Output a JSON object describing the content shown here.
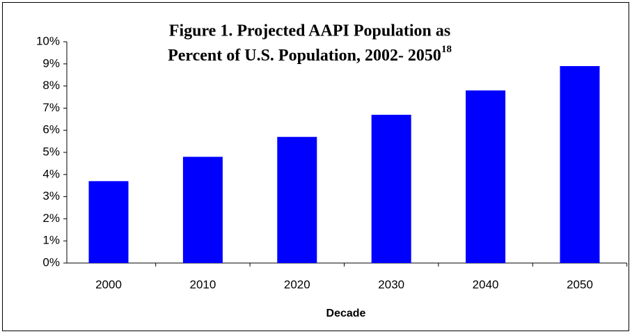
{
  "chart_data": {
    "type": "bar",
    "title": [
      "Figure 1. Projected AAPI Population as",
      "Percent of U.S. Population, 2002- 2050"
    ],
    "title_superscript": "18",
    "x_label": "Decade",
    "categories": [
      "2000",
      "2010",
      "2020",
      "2030",
      "2040",
      "2050"
    ],
    "values": [
      3.7,
      4.8,
      5.7,
      6.7,
      7.8,
      8.9
    ],
    "color": "#0000ff",
    "ylim": [
      0,
      10
    ],
    "yticks": [
      {
        "value": 0,
        "label": "0%"
      },
      {
        "value": 1,
        "label": "1%"
      },
      {
        "value": 2,
        "label": "2%"
      },
      {
        "value": 3,
        "label": "3%"
      },
      {
        "value": 4,
        "label": "4%"
      },
      {
        "value": 5,
        "label": "5%"
      },
      {
        "value": 6,
        "label": "6%"
      },
      {
        "value": 7,
        "label": "7%"
      },
      {
        "value": 8,
        "label": "8%"
      },
      {
        "value": 9,
        "label": "9%"
      },
      {
        "value": 10,
        "label": "10%"
      }
    ],
    "grid": false
  }
}
